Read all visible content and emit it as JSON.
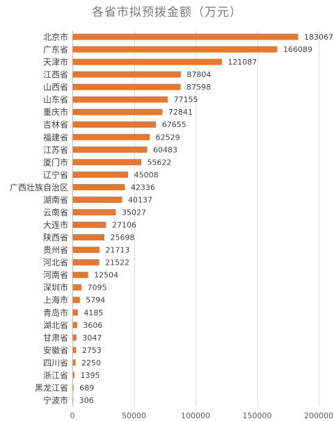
{
  "chart_data": {
    "type": "bar",
    "orientation": "horizontal",
    "title": "各省市拟预拨金额（万元）",
    "xlabel": "",
    "ylabel": "",
    "xlim": [
      0,
      200000
    ],
    "x_ticks": [
      0,
      50000,
      100000,
      150000,
      200000
    ],
    "grid": "vertical",
    "legend": "none",
    "data_labels": true,
    "bar_color": "#E8772E",
    "categories": [
      "北京市",
      "广东省",
      "天津市",
      "江西省",
      "山西省",
      "山东省",
      "重庆市",
      "吉林省",
      "福建省",
      "江苏省",
      "厦门市",
      "辽宁省",
      "广西壮族自治区",
      "湖南省",
      "云南省",
      "大连市",
      "陕西省",
      "贵州省",
      "河北省",
      "河南省",
      "深圳市",
      "上海市",
      "青岛市",
      "湖北省",
      "甘肃省",
      "安徽省",
      "四川省",
      "浙江省",
      "黑龙江省",
      "宁波市"
    ],
    "values": [
      183067,
      166089,
      121087,
      87804,
      87598,
      77155,
      72841,
      67655,
      62529,
      60483,
      55622,
      45008,
      42336,
      40137,
      35027,
      27106,
      25698,
      21713,
      21522,
      12504,
      7095,
      5794,
      4185,
      3606,
      3047,
      2753,
      2250,
      1395,
      689,
      306
    ]
  }
}
